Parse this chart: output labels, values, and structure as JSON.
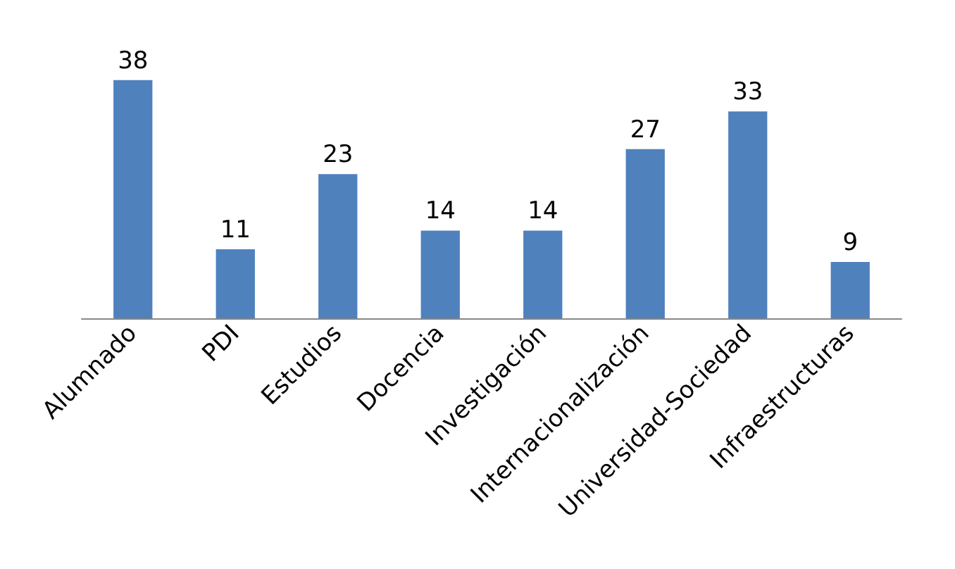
{
  "chart_data": {
    "type": "bar",
    "categories": [
      "Alumnado",
      "PDI",
      "Estudios",
      "Docencia",
      "Investigación",
      "Internacionalización",
      "Universidad-Sociedad",
      "Infraestructuras"
    ],
    "values": [
      38,
      11,
      23,
      14,
      14,
      27,
      33,
      9
    ],
    "color": "#4f81bd",
    "data_labels": true
  }
}
